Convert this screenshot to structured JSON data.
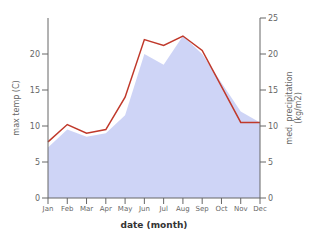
{
  "chart_data": {
    "type": "line",
    "categories": [
      "Jan",
      "Feb",
      "Mar",
      "Apr",
      "May",
      "Jun",
      "Jul",
      "Aug",
      "Sep",
      "Oct",
      "Nov",
      "Dec"
    ],
    "series": [
      {
        "type": "area",
        "color": "#c5cdf5",
        "values": [
          7.0,
          9.5,
          8.5,
          9.0,
          11.5,
          20.0,
          18.5,
          22.5,
          20.0,
          16.0,
          12.0,
          10.5
        ]
      },
      {
        "type": "line",
        "color": "#c0392b",
        "values": [
          7.8,
          10.2,
          9.0,
          9.5,
          14.0,
          22.0,
          21.2,
          22.5,
          20.5,
          15.5,
          10.5,
          10.5
        ]
      }
    ],
    "xlabel": "date (month)",
    "ylabel": "max temp (C)",
    "y2label": "med. precipitation\n(kg/m2)",
    "ylim": [
      0,
      25
    ],
    "yticks": [
      0,
      5,
      10,
      15,
      20
    ],
    "y2lim": [
      0,
      25
    ],
    "y2ticks": [
      0,
      5,
      10,
      15,
      20,
      25
    ],
    "grid": false
  }
}
